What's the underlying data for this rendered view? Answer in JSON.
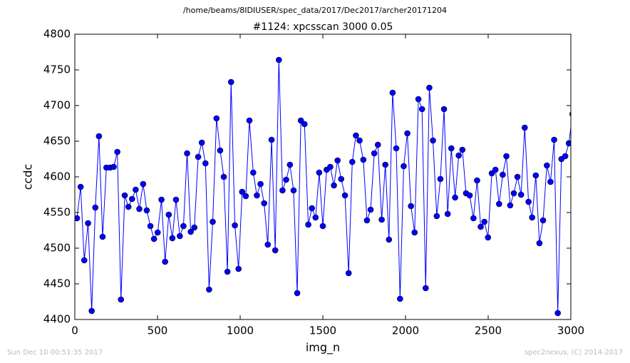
{
  "chart_data": {
    "type": "line",
    "suptitle": "/home/beams/8IDIUSER/spec_data/2017/Dec2017/archer20171204",
    "title": "#1124: xpcsscan 3000 0.05",
    "xlabel": "img_n",
    "ylabel": "ccdc",
    "footer_left": "Sun Dec 10 00:51:35 2017",
    "footer_right": "spec2nexus, (C) 2014-2017",
    "xlim": [
      0,
      3000
    ],
    "xticks": [
      0,
      500,
      1000,
      1500,
      2000,
      2500,
      3000
    ],
    "ylim": [
      4400,
      4800
    ],
    "yticks": [
      4400,
      4450,
      4500,
      4550,
      4600,
      4650,
      4700,
      4750,
      4800
    ],
    "x": [
      13,
      35,
      57,
      80,
      102,
      124,
      146,
      168,
      191,
      213,
      235,
      257,
      279,
      302,
      324,
      346,
      368,
      390,
      413,
      435,
      457,
      479,
      501,
      524,
      546,
      568,
      590,
      612,
      635,
      657,
      679,
      701,
      723,
      746,
      768,
      790,
      812,
      834,
      857,
      879,
      901,
      923,
      945,
      968,
      990,
      1012,
      1034,
      1056,
      1079,
      1101,
      1123,
      1145,
      1167,
      1190,
      1212,
      1234,
      1256,
      1278,
      1301,
      1323,
      1345,
      1367,
      1389,
      1412,
      1434,
      1456,
      1478,
      1500,
      1523,
      1545,
      1567,
      1589,
      1611,
      1634,
      1656,
      1678,
      1700,
      1722,
      1745,
      1767,
      1789,
      1811,
      1833,
      1856,
      1878,
      1900,
      1922,
      1944,
      1967,
      1989,
      2011,
      2033,
      2055,
      2078,
      2100,
      2122,
      2144,
      2166,
      2189,
      2211,
      2233,
      2255,
      2277,
      2300,
      2322,
      2344,
      2366,
      2388,
      2411,
      2433,
      2455,
      2477,
      2499,
      2522,
      2544,
      2566,
      2588,
      2610,
      2633,
      2655,
      2677,
      2699,
      2721,
      2744,
      2766,
      2788,
      2810,
      2832,
      2855,
      2877,
      2899,
      2921,
      2943,
      2966,
      2988,
      3010
    ],
    "series": [
      {
        "color": "#0000ff",
        "values": [
          4542,
          4586,
          4483,
          4535,
          4412,
          4557,
          4657,
          4516,
          4613,
          4613,
          4614,
          4635,
          4428,
          4574,
          4558,
          4569,
          4582,
          4555,
          4590,
          4553,
          4531,
          4513,
          4522,
          4568,
          4481,
          4547,
          4514,
          4568,
          4517,
          4531,
          4633,
          4523,
          4529,
          4628,
          4648,
          4619,
          4442,
          4537,
          4682,
          4637,
          4600,
          4467,
          4733,
          4532,
          4471,
          4579,
          4573,
          4679,
          4606,
          4574,
          4590,
          4563,
          4505,
          4652,
          4497,
          4764,
          4581,
          4596,
          4617,
          4581,
          4437,
          4679,
          4674,
          4533,
          4556,
          4543,
          4606,
          4531,
          4610,
          4614,
          4588,
          4623,
          4597,
          4574,
          4465,
          4621,
          4658,
          4651,
          4624,
          4539,
          4554,
          4633,
          4645,
          4540,
          4617,
          4512,
          4718,
          4640,
          4429,
          4615,
          4661,
          4559,
          4522,
          4709,
          4695,
          4444,
          4725,
          4651,
          4545,
          4597,
          4695,
          4548,
          4640,
          4571,
          4630,
          4638,
          4577,
          4574,
          4542,
          4595,
          4530,
          4537,
          4515,
          4605,
          4610,
          4562,
          4603,
          4629,
          4560,
          4577,
          4600,
          4575,
          4669,
          4565,
          4543,
          4602,
          4507,
          4539,
          4616,
          4593,
          4652,
          4409,
          4625,
          4629,
          4647,
          4688
        ]
      }
    ]
  }
}
